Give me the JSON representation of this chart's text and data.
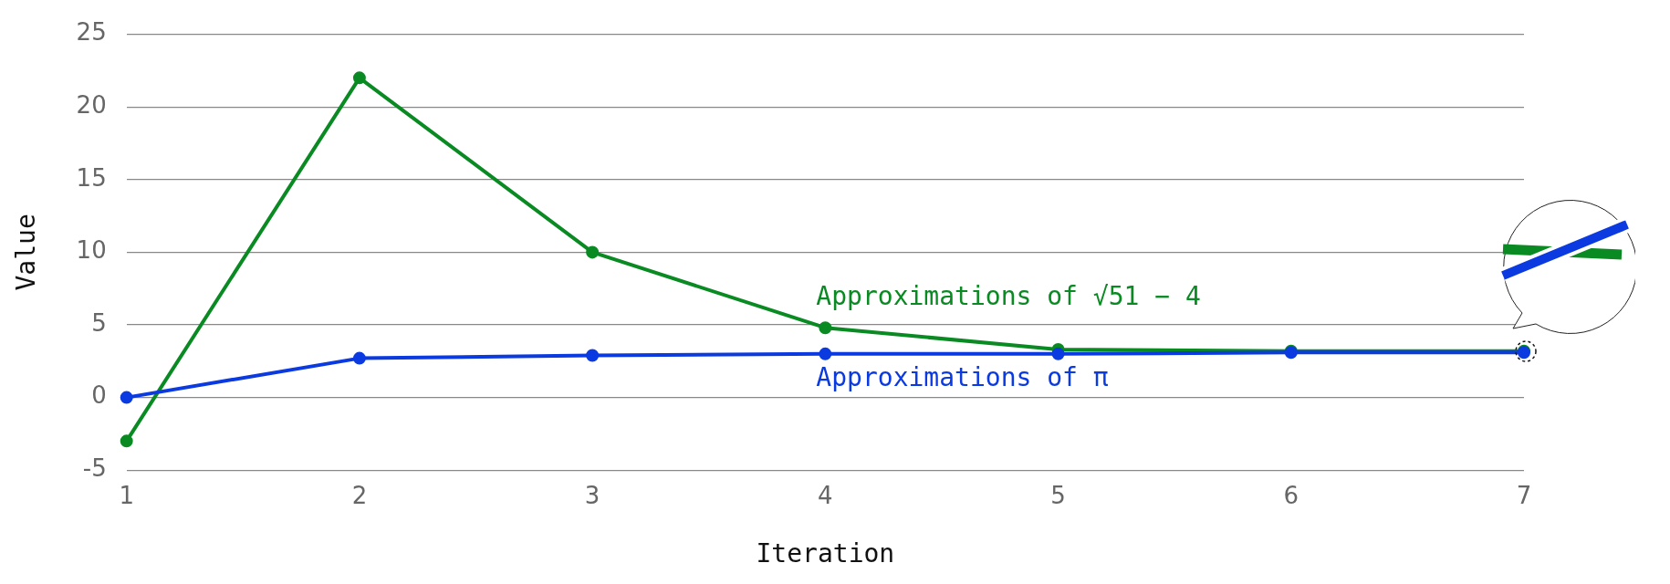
{
  "chart_data": {
    "type": "line",
    "xlabel": "Iteration",
    "ylabel": "Value",
    "x": [
      1,
      2,
      3,
      4,
      5,
      6,
      7
    ],
    "xlim": [
      1,
      7
    ],
    "xticks": [
      1,
      2,
      3,
      4,
      5,
      6,
      7
    ],
    "ylim": [
      -5,
      25
    ],
    "yticks": [
      -5,
      0,
      5,
      10,
      15,
      20,
      25
    ],
    "grid": "y",
    "legend": false,
    "marker": "circle",
    "line_style": "solid",
    "series": [
      {
        "name": "Approximations of √51 − 4",
        "color": "#0a8a22",
        "values": [
          -3,
          22,
          10,
          4.8,
          3.3,
          3.2,
          3.2
        ]
      },
      {
        "name": "Approximations of π",
        "color": "#0a3ae0",
        "values": [
          0,
          2.7,
          2.9,
          3.0,
          3.0,
          3.1,
          3.1
        ]
      }
    ]
  }
}
